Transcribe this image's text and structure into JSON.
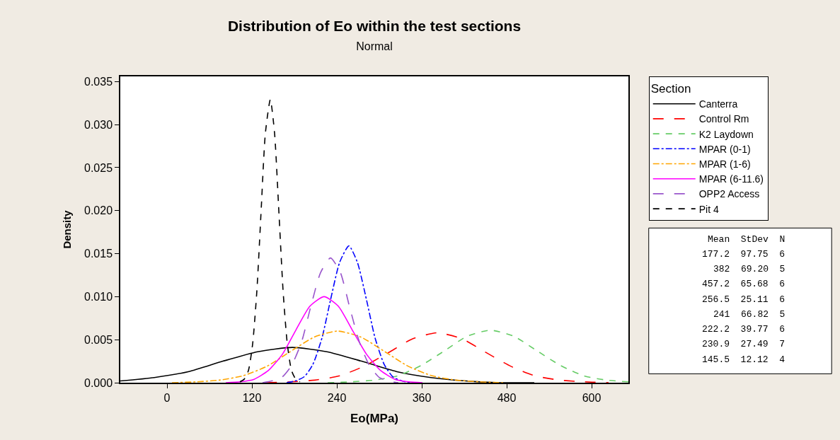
{
  "chart_data": {
    "type": "line",
    "title": "Distribution of Eo within the test sections",
    "subtitle": "Normal",
    "xlabel": "Eo(MPa)",
    "ylabel": "Density",
    "legend_title": "Section",
    "legend": "right",
    "marker": "none",
    "xlim": [
      -66,
      652
    ],
    "xticks": [
      0,
      120,
      240,
      360,
      480,
      600
    ],
    "ylim": [
      0,
      0.0356
    ],
    "yticks": [
      {
        "value": 0,
        "label": "0.000"
      },
      {
        "value": 0.005,
        "label": "0.005"
      },
      {
        "value": 0.01,
        "label": "0.010"
      },
      {
        "value": 0.015,
        "label": "0.015"
      },
      {
        "value": 0.02,
        "label": "0.020"
      },
      {
        "value": 0.025,
        "label": "0.025"
      },
      {
        "value": 0.03,
        "label": "0.030"
      },
      {
        "value": 0.035,
        "label": "0.035"
      }
    ],
    "series": [
      {
        "name": "Canterra",
        "color": "#000000",
        "line_style": "solid",
        "x": [
          -66,
          -18,
          31,
          79,
          128,
          177,
          226,
          275,
          324,
          373,
          422,
          471,
          519
        ],
        "values": [
          0.0002,
          0.0006,
          0.0013,
          0.0025,
          0.0036,
          0.0041,
          0.0036,
          0.0025,
          0.0013,
          0.0006,
          0.0002,
          0.0,
          0.0
        ]
      },
      {
        "name": "Control Rm",
        "color": "#ff0000",
        "line_style": "longdash",
        "x": [
          140,
          174,
          209,
          244,
          278,
          313,
          347,
          382,
          417,
          451,
          486,
          520,
          555,
          590,
          624
        ],
        "values": [
          0.0,
          0.0001,
          0.0003,
          0.0008,
          0.0019,
          0.0035,
          0.0051,
          0.0058,
          0.0051,
          0.0035,
          0.0019,
          0.0008,
          0.0003,
          0.0001,
          0.0
        ]
      },
      {
        "name": "K2 Laydown",
        "color": "#66cc66",
        "line_style": "dashed",
        "x": [
          227,
          260,
          293,
          326,
          359,
          392,
          424,
          457,
          490,
          523,
          556,
          589,
          621,
          652
        ],
        "values": [
          0.0,
          0.0001,
          0.0003,
          0.0008,
          0.002,
          0.0037,
          0.0054,
          0.0061,
          0.0054,
          0.0037,
          0.002,
          0.0008,
          0.0003,
          0.0001
        ]
      },
      {
        "name": "MPAR (0-1)",
        "color": "#0000ff",
        "line_style": "dashdot",
        "x": [
          169,
          181,
          194,
          206,
          219,
          231,
          244,
          257,
          269,
          282,
          294,
          307,
          319,
          332,
          344
        ],
        "values": [
          0.0,
          0.0002,
          0.0007,
          0.0021,
          0.0052,
          0.0096,
          0.014,
          0.0159,
          0.014,
          0.0096,
          0.0052,
          0.0021,
          0.0007,
          0.0002,
          0.0
        ]
      },
      {
        "name": "MPAR (1-6)",
        "color": "#ffa500",
        "line_style": "dashdot",
        "x": [
          7,
          41,
          74,
          107,
          141,
          174,
          208,
          241,
          274,
          308,
          341,
          375,
          408,
          442,
          475
        ],
        "values": [
          0.0,
          0.0001,
          0.0003,
          0.0008,
          0.0019,
          0.0036,
          0.0053,
          0.006,
          0.0053,
          0.0036,
          0.0019,
          0.0008,
          0.0003,
          0.0001,
          0.0
        ]
      },
      {
        "name": "MPAR (6-11.6)",
        "color": "#ff00ff",
        "line_style": "solid",
        "x": [
          83,
          103,
          123,
          143,
          163,
          182,
          202,
          222,
          242,
          262,
          282,
          302,
          322,
          342,
          361
        ],
        "values": [
          0.0,
          0.0001,
          0.0004,
          0.0014,
          0.0033,
          0.0061,
          0.0089,
          0.01,
          0.0089,
          0.0061,
          0.0033,
          0.0014,
          0.0004,
          0.0001,
          0.0
        ]
      },
      {
        "name": "OPP2 Access",
        "color": "#9955cc",
        "line_style": "longdash",
        "x": [
          135,
          148,
          162,
          176,
          190,
          203,
          217,
          231,
          245,
          258,
          272,
          286,
          300,
          313,
          327
        ],
        "values": [
          0.0,
          0.0002,
          0.0006,
          0.002,
          0.0047,
          0.0088,
          0.0128,
          0.0145,
          0.0128,
          0.0088,
          0.0047,
          0.002,
          0.0006,
          0.0002,
          0.0
        ]
      },
      {
        "name": "Pit 4",
        "color": "#000000",
        "line_style": "dashed",
        "x": [
          103,
          109,
          115,
          121,
          127,
          133,
          139,
          146,
          152,
          158,
          164,
          170,
          176,
          182,
          188
        ],
        "values": [
          0.0001,
          0.0004,
          0.0014,
          0.0045,
          0.0107,
          0.02,
          0.029,
          0.0329,
          0.029,
          0.02,
          0.0107,
          0.0045,
          0.0014,
          0.0004,
          0.0001
        ]
      }
    ],
    "annotations": [
      "Mean  StDev  N",
      "177.2  97.75  6",
      "382  69.20  5",
      "457.2  65.68  6",
      "256.5  25.11  6",
      "241  66.82  5",
      "222.2  39.77  6",
      "230.9  27.49  7",
      "145.5  12.12  4"
    ]
  }
}
